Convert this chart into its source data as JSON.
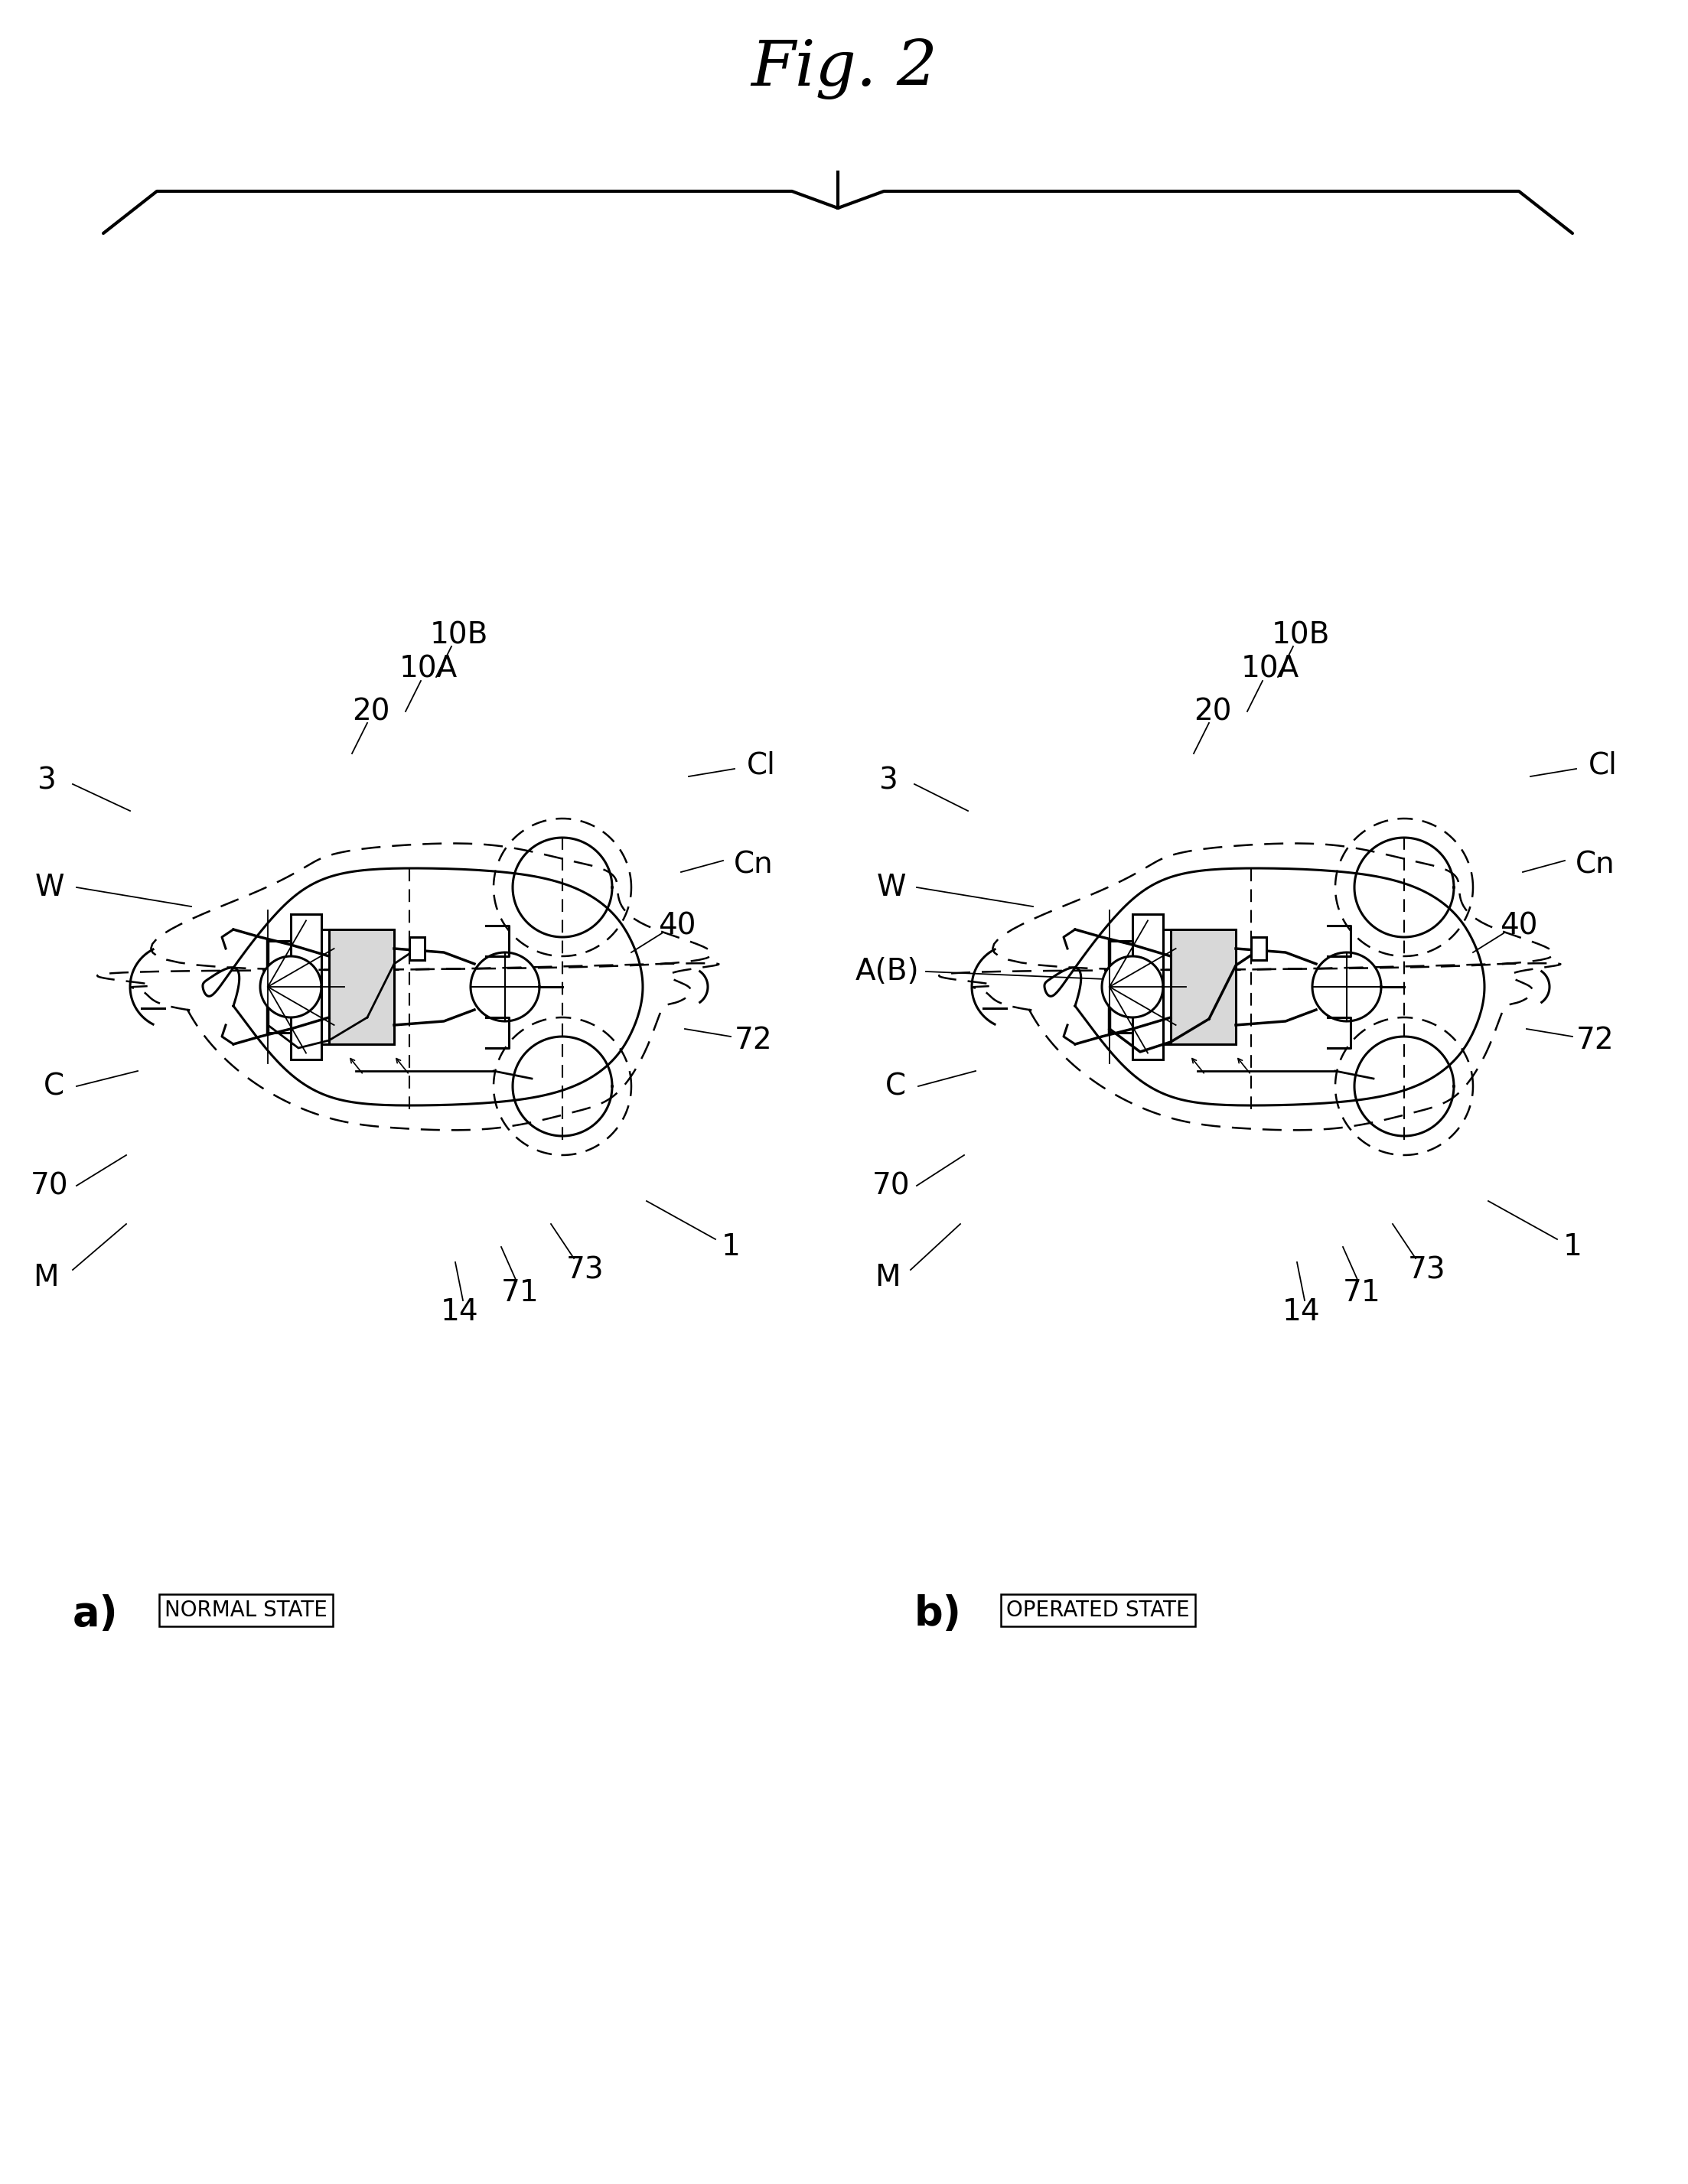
{
  "title": "Fig. 2",
  "background_color": "#ffffff",
  "line_color": "#000000",
  "fig_width": 21.96,
  "fig_height": 28.45,
  "panel_a_label": "a)",
  "panel_b_label": "b)",
  "panel_a_state": "NORMAL STATE",
  "panel_b_state": "OPERATED STATE",
  "label_fontsize": 28,
  "title_fontsize": 60,
  "state_fontsize": 20,
  "panel_label_fontsize": 38
}
